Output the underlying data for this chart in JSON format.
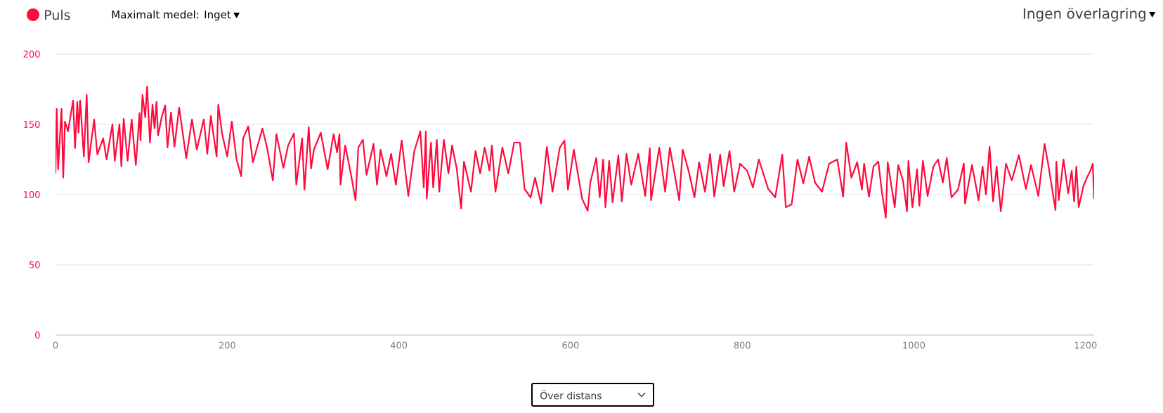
{
  "chart_data": {
    "type": "line",
    "xlim": [
      0,
      1210
    ],
    "ylim": [
      0,
      200
    ],
    "xticks": [
      0,
      200,
      400,
      600,
      800,
      1000,
      1200
    ],
    "yticks": [
      0,
      50,
      100,
      150,
      200
    ],
    "grid": "y",
    "legend": "top left",
    "annotations": [
      "Maximalt medel: Inget",
      "Ingen överlagring",
      "Över distans"
    ],
    "series": [
      {
        "name": "Puls",
        "color": "#ff0a3c",
        "x": [
          0,
          1.4,
          3,
          7,
          9,
          11,
          14.5,
          20.5,
          22.7,
          25.4,
          26.8,
          28.7,
          33,
          36.3,
          38.5,
          45,
          48.7,
          55.5,
          59.5,
          66.3,
          69,
          74.5,
          76.7,
          79.4,
          84,
          88.7,
          93.6,
          97.8,
          99,
          101.3,
          104.5,
          106.7,
          110,
          113,
          115.4,
          117.6,
          119.5,
          123.6,
          127.7,
          130.5,
          134.5,
          138.6,
          144,
          152.3,
          159,
          164.6,
          172.7,
          176.8,
          180.9,
          187.7,
          189.6,
          194,
          200,
          205.4,
          210.9,
          216.3,
          218.5,
          224.5,
          230,
          241,
          246.4,
          253.2,
          257.3,
          265.5,
          271,
          277.8,
          280.5,
          287.3,
          290,
          295,
          297.7,
          301,
          309,
          317,
          324,
          328,
          330.8,
          332,
          337.5,
          344,
          349.5,
          352.8,
          358,
          362.3,
          370.5,
          374.5,
          378.7,
          385.5,
          391,
          396.5,
          403.3,
          411,
          418,
          425,
          429,
          431.4,
          432.5,
          437.4,
          440,
          444.2,
          447,
          452.4,
          457.8,
          462,
          467.4,
          472.5,
          475.8,
          484,
          489.3,
          494.7,
          500,
          505.6,
          508.4,
          512.5,
          520.6,
          527.5,
          534.3,
          541,
          546.4,
          553.5,
          558.7,
          565.6,
          572.4,
          579,
          587.5,
          592.9,
          597,
          603.8,
          613.5,
          620,
          623,
          630,
          634,
          638,
          640.7,
          645,
          649,
          655.7,
          659.8,
          665.2,
          670.7,
          678.9,
          687,
          692.4,
          693.8,
          703.4,
          710.2,
          715.7,
          726.6,
          730.7,
          737.5,
          744.4,
          749.8,
          756.6,
          762.6,
          767.5,
          774.3,
          778.4,
          785.2,
          790.7,
          797.5,
          805.7,
          812.5,
          819.4,
          830.3,
          838.5,
          846.7,
          850.8,
          857.6,
          864.4,
          871.2,
          878,
          884.9,
          893,
          901.3,
          910.8,
          917.6,
          921.2,
          927.2,
          934,
          939.5,
          942,
          947.7,
          953,
          958.6,
          962.7,
          967.3,
          969.5,
          977.7,
          981.8,
          987.3,
          992,
          993.6,
          998.3,
          1003.7,
          1006.4,
          1010.5,
          1016,
          1022.8,
          1028.2,
          1033.7,
          1038.3,
          1043.8,
          1051.4,
          1058.2,
          1059.5,
          1067.7,
          1075.4,
          1080,
          1084,
          1088.2,
          1092.3,
          1096.4,
          1101.3,
          1107.3,
          1114.1,
          1122.3,
          1130.5,
          1136.5,
          1145,
          1152.3,
          1156.4,
          1165,
          1166,
          1168.8,
          1174.3,
          1179.8,
          1183.9,
          1186.6,
          1189.3,
          1192,
          1197.5,
          1201.6,
          1205.7,
          1208.4,
          1210
        ],
        "values": [
          115,
          161,
          118,
          161,
          112,
          152,
          145,
          167,
          133,
          166,
          144,
          167,
          127,
          171,
          123,
          153.5,
          128.5,
          140,
          125,
          150,
          124,
          150,
          120,
          154,
          124,
          153.5,
          121,
          158,
          138.5,
          171,
          155,
          177,
          137,
          164,
          147,
          166,
          142,
          155,
          163.5,
          133.5,
          158.5,
          134,
          162,
          126,
          153.5,
          132,
          153.5,
          129,
          156,
          127,
          164,
          143.5,
          127,
          152,
          125,
          113,
          140,
          148.5,
          123,
          147,
          133.5,
          110,
          143,
          119,
          135,
          143.5,
          107,
          140,
          103.5,
          148,
          118.5,
          132,
          144,
          118,
          143,
          130,
          143,
          107,
          135,
          115,
          96,
          133.5,
          139,
          114,
          136,
          107,
          132,
          113,
          129,
          107,
          138.5,
          99,
          131,
          145,
          105,
          145,
          97,
          137,
          105,
          139,
          102,
          139,
          115,
          135,
          118.5,
          90,
          123.5,
          102,
          131,
          115,
          133.5,
          117,
          135,
          102,
          133.5,
          115,
          137,
          137,
          104,
          98,
          112,
          93.5,
          134,
          102,
          133.5,
          138.5,
          103.5,
          132,
          97,
          88.5,
          108.5,
          126,
          98,
          125,
          91,
          124,
          94.5,
          128,
          95,
          129,
          107,
          129,
          99,
          133,
          96,
          133.5,
          102,
          133.5,
          96,
          132,
          117,
          98,
          123,
          102,
          129,
          98.5,
          128.5,
          106,
          131,
          102,
          122,
          117,
          105,
          125,
          104,
          98,
          128.5,
          91,
          93,
          125,
          108,
          127,
          108.5,
          102,
          122,
          125,
          98.5,
          137,
          112,
          123,
          103.5,
          122,
          98.5,
          120,
          123.5,
          102,
          83.5,
          123,
          91,
          121,
          110,
          88,
          124,
          91,
          118,
          92,
          124,
          99,
          120,
          125,
          108.5,
          126,
          98,
          103.5,
          122,
          93.5,
          121,
          96,
          120,
          100,
          134,
          95,
          120,
          88,
          122,
          110,
          128,
          104,
          121,
          99,
          136,
          122,
          89,
          123.5,
          96,
          125,
          101,
          117,
          95,
          120,
          91,
          106,
          112,
          117,
          122,
          97
        ]
      }
    ]
  }
}
